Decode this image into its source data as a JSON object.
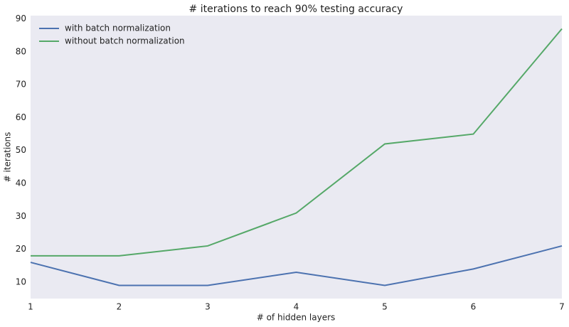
{
  "chart_data": {
    "type": "line",
    "title": "# iterations to reach 90% testing accuracy",
    "x_label": "# of hidden layers",
    "y_label": "# iterations",
    "x": [
      1,
      2,
      3,
      4,
      5,
      6,
      7
    ],
    "series": [
      {
        "name": "with batch normalization",
        "color": "#4c72b0",
        "values": [
          16,
          9,
          9,
          13,
          9,
          14,
          21
        ]
      },
      {
        "name": "without batch normalization",
        "color": "#55a868",
        "values": [
          18,
          18,
          21,
          31,
          52,
          55,
          87
        ]
      }
    ],
    "xlim": [
      1,
      7
    ],
    "xticks": [
      1,
      2,
      3,
      4,
      5,
      6,
      7
    ],
    "ylim": [
      5,
      91
    ],
    "yticks": [
      10,
      20,
      30,
      40,
      50,
      60,
      70,
      80,
      90
    ],
    "grid": false,
    "legend": "upper-left",
    "background": "#eaeaf2"
  }
}
